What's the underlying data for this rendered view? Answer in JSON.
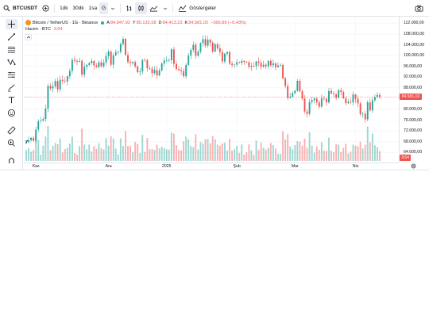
{
  "toolbar": {
    "symbol": "BTCUSDT",
    "intervals": [
      "1dk",
      "30dk",
      "1sa",
      "G"
    ],
    "indicators_label": "Göstergeler"
  },
  "legend": {
    "title": "Bitcoin / TetherUS · 1G · Binance",
    "open_label": "A",
    "open": "84.947,92",
    "high_label": "Y",
    "high": "85.132,08",
    "low_label": "D",
    "low": "84.413,23",
    "close_label": "K",
    "close": "84.581,02",
    "change": "−366,89 (−0,43%)",
    "volume_label": "Hacim · BTC",
    "volume_value": "3,64"
  },
  "price_scale": {
    "ticks": [
      "112.000,00",
      "108.000,00",
      "104.000,00",
      "100.000,00",
      "96.000,00",
      "92.000,00",
      "88.000,00",
      "84.581,02",
      "80.000,00",
      "76.000,00",
      "72.000,00",
      "68.000,00",
      "64.000,00"
    ],
    "current_price": "84.581,02",
    "current_volume": "3,64"
  },
  "time_scale": {
    "labels": [
      "Kas",
      "Ara",
      "2025",
      "Şub",
      "Mar",
      "Nis"
    ]
  },
  "colors": {
    "up": "#26a69a",
    "down": "#ef5350",
    "grid": "#f0f3fa",
    "current_line": "#ef5350"
  },
  "chart_data": {
    "type": "candlestick",
    "symbol": "BTCUSDT",
    "interval": "1G",
    "ylim": [
      62000,
      113000
    ],
    "x_labels": [
      "Kas",
      "Ara",
      "2025",
      "Şub",
      "Mar",
      "Nis"
    ],
    "closes": [
      67800,
      68500,
      69400,
      68300,
      72500,
      75600,
      75800,
      76400,
      80300,
      88700,
      87800,
      88600,
      90500,
      87400,
      91000,
      90600,
      90400,
      92300,
      94300,
      98400,
      98000,
      97700,
      98000,
      92900,
      95800,
      96500,
      97200,
      98000,
      96300,
      95700,
      97500,
      96000,
      97400,
      99800,
      101500,
      96600,
      100100,
      101300,
      101400,
      104300,
      106200,
      100200,
      97600,
      97200,
      97600,
      96000,
      93800,
      94100,
      98400,
      98300,
      95300,
      95100,
      93500,
      94600,
      92600,
      94500,
      97000,
      98100,
      98200,
      98300,
      102300,
      96900,
      95000,
      94600,
      94200,
      92300,
      96500,
      100000,
      102100,
      104000,
      99900,
      101400,
      104600,
      106100,
      103700,
      105900,
      104800,
      101500,
      104200,
      102700,
      101300,
      97800,
      100700,
      101300,
      97000,
      96500,
      96600,
      97500,
      97300,
      98000,
      97600,
      97500,
      95800,
      96200,
      96100,
      97800,
      97300,
      95800,
      96600,
      96000,
      98000,
      96400,
      97100,
      95700,
      96300,
      96500,
      91500,
      88700,
      84300,
      84700,
      86000,
      86900,
      90600,
      86700,
      84000,
      79200,
      78300,
      82700,
      83400,
      84000,
      82600,
      81000,
      84100,
      83900,
      82600,
      86800,
      85900,
      85600,
      84300,
      87100,
      86400,
      84100,
      82300,
      82800,
      82600,
      85500,
      83900,
      82200,
      78200,
      78300,
      76300,
      82600,
      79600,
      83400,
      84500,
      85300,
      84600
    ],
    "volume_scale": "Hacim · BTC",
    "last_volume": 3.64
  }
}
